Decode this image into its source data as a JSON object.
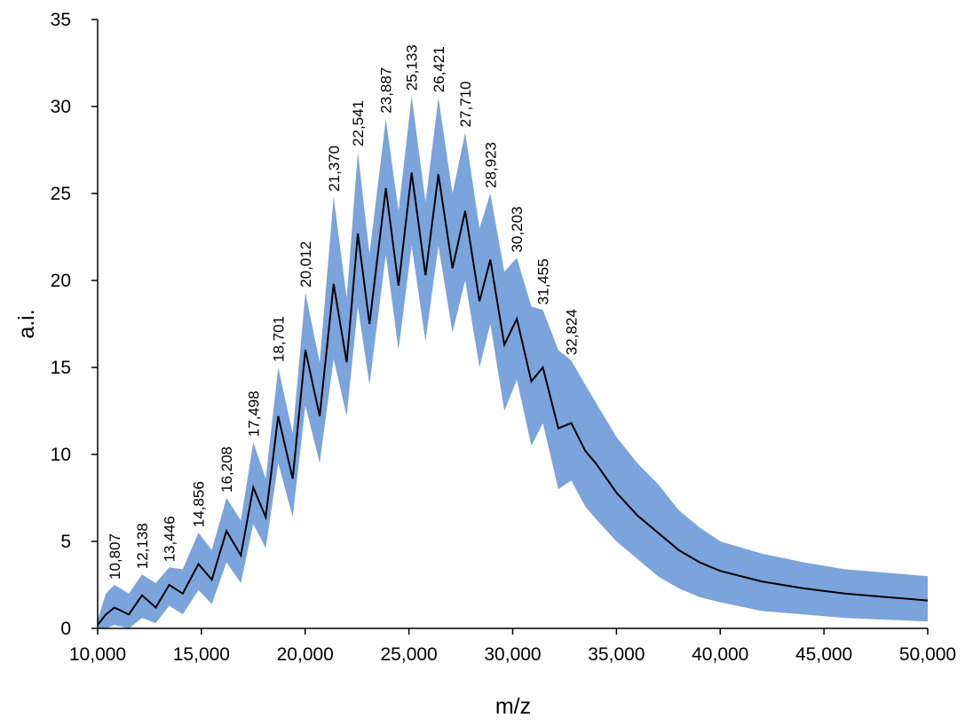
{
  "chart_data": {
    "type": "line",
    "x_label": "m/z",
    "y_label": "a.i.",
    "xlim": [
      10000,
      50000
    ],
    "ylim": [
      0,
      35
    ],
    "xticks": [
      {
        "value": 10000,
        "label": "10,000"
      },
      {
        "value": 15000,
        "label": "15,000"
      },
      {
        "value": 20000,
        "label": "20,000"
      },
      {
        "value": 25000,
        "label": "25,000"
      },
      {
        "value": 30000,
        "label": "30,000"
      },
      {
        "value": 35000,
        "label": "35,000"
      },
      {
        "value": 40000,
        "label": "40,000"
      },
      {
        "value": 45000,
        "label": "45,000"
      },
      {
        "value": 50000,
        "label": "50,000"
      }
    ],
    "yticks": [
      0,
      5,
      10,
      15,
      20,
      25,
      30,
      35
    ],
    "grid": false,
    "x": [
      10000,
      10400,
      10807,
      11500,
      12138,
      12800,
      13446,
      14100,
      14856,
      15500,
      16208,
      16900,
      17498,
      18100,
      18701,
      19400,
      20012,
      20700,
      21370,
      22000,
      22541,
      23100,
      23887,
      24500,
      25133,
      25800,
      26421,
      27100,
      27710,
      28400,
      28923,
      29600,
      30203,
      30900,
      31455,
      32200,
      32824,
      33500,
      34000,
      35000,
      36000,
      37000,
      38000,
      39000,
      40000,
      42000,
      44000,
      46000,
      48000,
      50000
    ],
    "band": {
      "color": "#7ba3dc",
      "upper": [
        0.5,
        2.0,
        2.5,
        2.0,
        3.1,
        2.6,
        3.5,
        3.4,
        5.5,
        4.5,
        7.5,
        6.2,
        10.7,
        8.6,
        15.0,
        11.2,
        19.3,
        15.3,
        24.8,
        19.0,
        27.4,
        21.5,
        29.3,
        24.0,
        30.6,
        24.5,
        30.5,
        25.0,
        28.5,
        23.0,
        25.0,
        20.5,
        21.3,
        18.5,
        18.3,
        16.0,
        15.4,
        14.0,
        13.0,
        11.0,
        9.5,
        8.3,
        6.8,
        5.8,
        5.0,
        4.3,
        3.8,
        3.4,
        3.2,
        3.0
      ],
      "lower": [
        0,
        0,
        0.2,
        0,
        0.6,
        0.3,
        1.3,
        0.8,
        2.2,
        1.4,
        3.8,
        2.6,
        6.0,
        4.6,
        9.5,
        6.4,
        12.8,
        9.5,
        15.5,
        12.2,
        18.5,
        14.0,
        21.5,
        16.0,
        22.0,
        16.5,
        22.0,
        17.0,
        20.0,
        15.0,
        17.5,
        12.5,
        14.3,
        10.5,
        11.8,
        8.0,
        8.5,
        7.0,
        6.3,
        5.0,
        4.0,
        3.0,
        2.3,
        1.8,
        1.5,
        1.0,
        0.8,
        0.6,
        0.5,
        0.4
      ]
    },
    "series": [
      {
        "color": "#000000",
        "values": [
          0.2,
          0.8,
          1.2,
          0.8,
          1.9,
          1.2,
          2.5,
          2.0,
          3.7,
          2.8,
          5.6,
          4.2,
          8.1,
          6.4,
          12.2,
          8.6,
          16.0,
          12.2,
          19.8,
          15.3,
          22.7,
          17.5,
          25.3,
          19.7,
          26.2,
          20.3,
          26.1,
          20.7,
          24.0,
          18.8,
          21.2,
          16.3,
          17.8,
          14.2,
          15.0,
          11.5,
          11.8,
          10.2,
          9.5,
          7.8,
          6.5,
          5.5,
          4.5,
          3.8,
          3.3,
          2.7,
          2.3,
          2.0,
          1.8,
          1.6
        ]
      }
    ],
    "peak_labels": [
      {
        "value": 10807,
        "label": "10,807"
      },
      {
        "value": 12138,
        "label": "12,138"
      },
      {
        "value": 13446,
        "label": "13,446"
      },
      {
        "value": 14856,
        "label": "14,856"
      },
      {
        "value": 16208,
        "label": "16,208"
      },
      {
        "value": 17498,
        "label": "17,498"
      },
      {
        "value": 18701,
        "label": "18,701"
      },
      {
        "value": 20012,
        "label": "20,012"
      },
      {
        "value": 21370,
        "label": "21,370"
      },
      {
        "value": 22541,
        "label": "22,541"
      },
      {
        "value": 23887,
        "label": "23,887"
      },
      {
        "value": 25133,
        "label": "25,133"
      },
      {
        "value": 26421,
        "label": "26,421"
      },
      {
        "value": 27710,
        "label": "27,710"
      },
      {
        "value": 28923,
        "label": "28,923"
      },
      {
        "value": 30203,
        "label": "30,203"
      },
      {
        "value": 31455,
        "label": "31,455"
      },
      {
        "value": 32824,
        "label": "32,824"
      }
    ]
  }
}
